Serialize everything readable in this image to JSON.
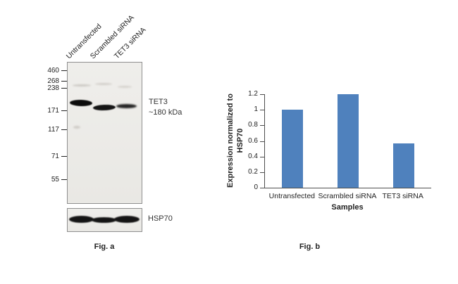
{
  "figure": {
    "fig_a_label": "Fig. a",
    "fig_b_label": "Fig. b"
  },
  "blot": {
    "lane_labels": [
      "Untransfected",
      "Scrambled siRNA",
      "TET3 siRNA"
    ],
    "mw_markers": [
      "460",
      "268",
      "238",
      "171",
      "117",
      "71",
      "55"
    ],
    "band_label_line1": "TET3",
    "band_label_line2": "~180 kDa",
    "loading_control_label": "HSP70"
  },
  "chart_data": {
    "type": "bar",
    "categories": [
      "Untransfected",
      "Scrambled siRNA",
      "TET3 siRNA"
    ],
    "values": [
      1,
      1.2,
      0.57
    ],
    "title": "",
    "xlabel": "Samples",
    "ylabel": "Expression normalized to HSP70",
    "ylim": [
      0,
      1.2
    ],
    "yticks": [
      0,
      0.2,
      0.4,
      0.6,
      0.8,
      1,
      1.2
    ],
    "grid": false,
    "legend": "none",
    "bar_color": "#4F81BD"
  }
}
